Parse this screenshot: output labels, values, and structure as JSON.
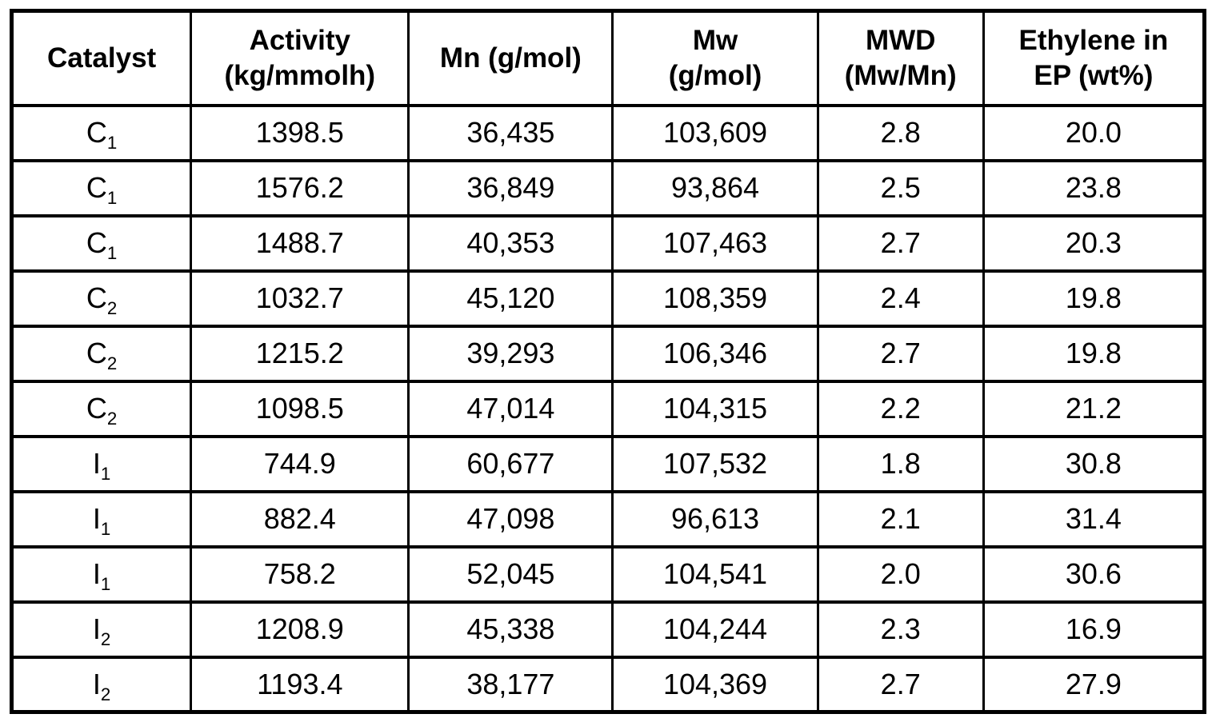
{
  "colors": {
    "background": "#ffffff",
    "text": "#000000",
    "border": "#000000"
  },
  "table": {
    "headers": [
      {
        "key": "catalyst",
        "lines": [
          "Catalyst"
        ]
      },
      {
        "key": "activity",
        "lines": [
          "Activity",
          "(kg/mmolh)"
        ]
      },
      {
        "key": "mn",
        "lines": [
          "Mn (g/mol)"
        ]
      },
      {
        "key": "mw",
        "lines": [
          "Mw",
          "(g/mol)"
        ]
      },
      {
        "key": "mwd",
        "lines": [
          "MWD",
          "(Mw/Mn)"
        ]
      },
      {
        "key": "ethylene",
        "lines": [
          "Ethylene in",
          "EP (wt%)"
        ]
      }
    ],
    "rows": [
      {
        "catalyst": {
          "base": "C",
          "sub": "1"
        },
        "activity": "1398.5",
        "mn": "36,435",
        "mw": "103,609",
        "mwd": "2.8",
        "ethylene": "20.0"
      },
      {
        "catalyst": {
          "base": "C",
          "sub": "1"
        },
        "activity": "1576.2",
        "mn": "36,849",
        "mw": "93,864",
        "mwd": "2.5",
        "ethylene": "23.8"
      },
      {
        "catalyst": {
          "base": "C",
          "sub": "1"
        },
        "activity": "1488.7",
        "mn": "40,353",
        "mw": "107,463",
        "mwd": "2.7",
        "ethylene": "20.3"
      },
      {
        "catalyst": {
          "base": "C",
          "sub": "2"
        },
        "activity": "1032.7",
        "mn": "45,120",
        "mw": "108,359",
        "mwd": "2.4",
        "ethylene": "19.8"
      },
      {
        "catalyst": {
          "base": "C",
          "sub": "2"
        },
        "activity": "1215.2",
        "mn": "39,293",
        "mw": "106,346",
        "mwd": "2.7",
        "ethylene": "19.8"
      },
      {
        "catalyst": {
          "base": "C",
          "sub": "2"
        },
        "activity": "1098.5",
        "mn": "47,014",
        "mw": "104,315",
        "mwd": "2.2",
        "ethylene": "21.2"
      },
      {
        "catalyst": {
          "base": "I",
          "sub": "1"
        },
        "activity": "744.9",
        "mn": "60,677",
        "mw": "107,532",
        "mwd": "1.8",
        "ethylene": "30.8"
      },
      {
        "catalyst": {
          "base": "I",
          "sub": "1"
        },
        "activity": "882.4",
        "mn": "47,098",
        "mw": "96,613",
        "mwd": "2.1",
        "ethylene": "31.4"
      },
      {
        "catalyst": {
          "base": "I",
          "sub": "1"
        },
        "activity": "758.2",
        "mn": "52,045",
        "mw": "104,541",
        "mwd": "2.0",
        "ethylene": "30.6"
      },
      {
        "catalyst": {
          "base": "I",
          "sub": "2"
        },
        "activity": "1208.9",
        "mn": "45,338",
        "mw": "104,244",
        "mwd": "2.3",
        "ethylene": "16.9"
      },
      {
        "catalyst": {
          "base": "I",
          "sub": "2"
        },
        "activity": "1193.4",
        "mn": "38,177",
        "mw": "104,369",
        "mwd": "2.7",
        "ethylene": "27.9"
      }
    ],
    "column_widths_pct": [
      15.04,
      18.25,
      17.11,
      17.18,
      13.9,
      18.52
    ]
  }
}
